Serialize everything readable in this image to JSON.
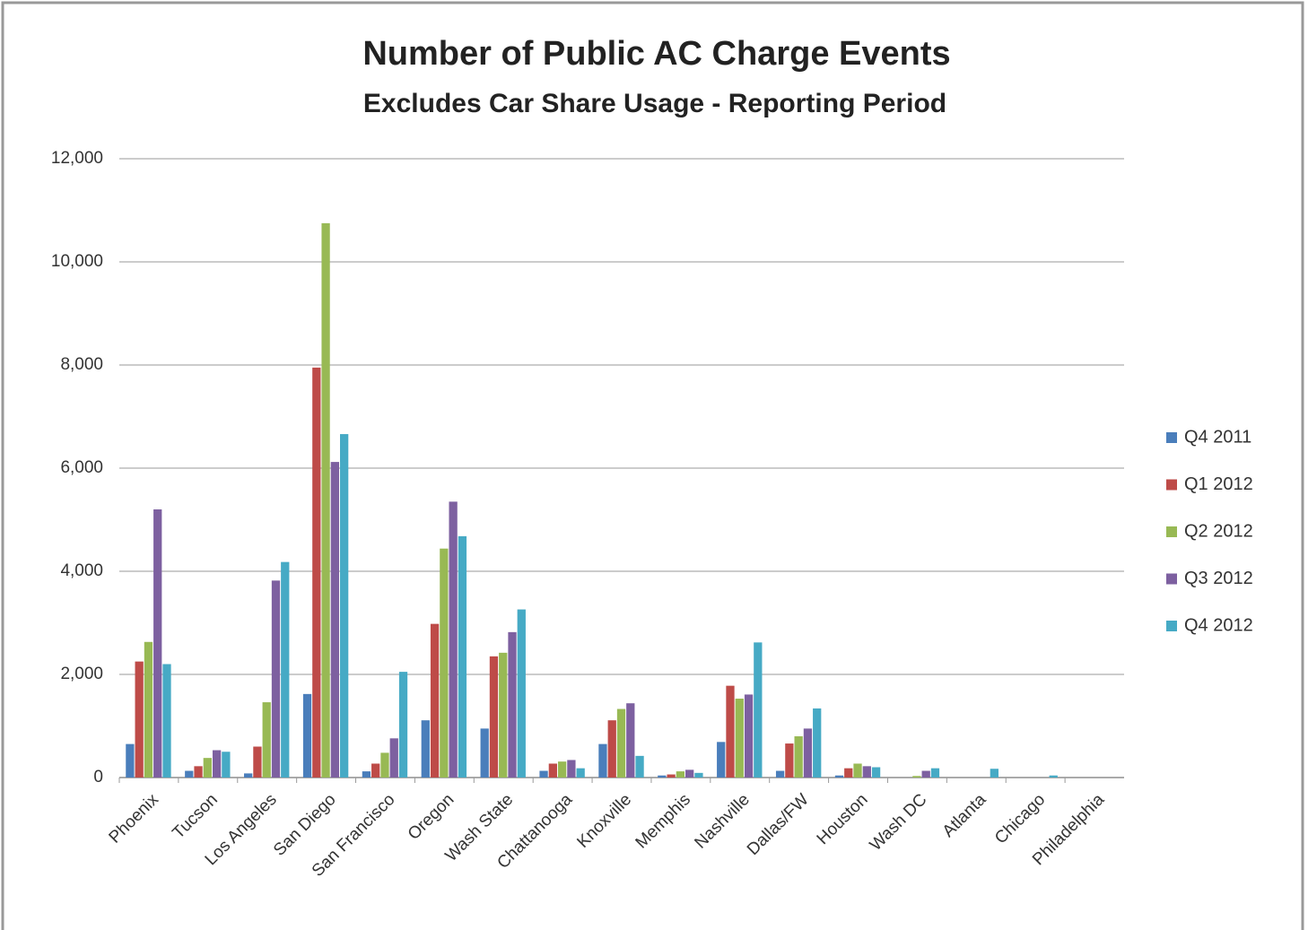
{
  "chart_data": {
    "type": "bar",
    "title": "Number of Public AC Charge Events",
    "subtitle": "Excludes Car Share Usage  - Reporting Period",
    "categories": [
      "Phoenix",
      "Tucson",
      "Los Angeles",
      "San Diego",
      "San Francisco",
      "Oregon",
      "Wash State",
      "Chattanooga",
      "Knoxville",
      "Memphis",
      "Nashville",
      "Dallas/FW",
      "Houston",
      "Wash DC",
      "Atlanta",
      "Chicago",
      "Philadelphia"
    ],
    "series": [
      {
        "name": "Q4 2011",
        "color": "#4a7ebb",
        "values": [
          650,
          130,
          80,
          1620,
          120,
          1110,
          950,
          130,
          650,
          40,
          690,
          130,
          40,
          0,
          0,
          0,
          0
        ]
      },
      {
        "name": "Q1 2012",
        "color": "#be4b48",
        "values": [
          2250,
          220,
          600,
          7950,
          270,
          2980,
          2350,
          270,
          1110,
          60,
          1780,
          660,
          180,
          0,
          0,
          0,
          0
        ]
      },
      {
        "name": "Q2 2012",
        "color": "#98b954",
        "values": [
          2630,
          380,
          1460,
          10750,
          480,
          4440,
          2420,
          310,
          1330,
          120,
          1530,
          800,
          270,
          30,
          0,
          0,
          0
        ]
      },
      {
        "name": "Q3 2012",
        "color": "#7d60a0",
        "values": [
          5200,
          530,
          3820,
          6120,
          760,
          5350,
          2820,
          340,
          1440,
          150,
          1610,
          950,
          220,
          130,
          0,
          0,
          0
        ]
      },
      {
        "name": "Q4 2012",
        "color": "#46aac5",
        "values": [
          2200,
          500,
          4180,
          6660,
          2050,
          4680,
          3260,
          180,
          420,
          90,
          2620,
          1340,
          200,
          180,
          170,
          40,
          0
        ]
      }
    ],
    "ylim": [
      0,
      12000
    ],
    "yticks": [
      0,
      {
        "value": 2000,
        "label": "2,000"
      },
      {
        "value": 4000,
        "label": "4,000"
      },
      {
        "value": 6000,
        "label": "6,000"
      },
      {
        "value": 8000,
        "label": "8,000"
      },
      {
        "value": 10000,
        "label": "10,000"
      },
      {
        "value": 12000,
        "label": "12,000"
      }
    ],
    "grid": true,
    "legend": "right"
  }
}
